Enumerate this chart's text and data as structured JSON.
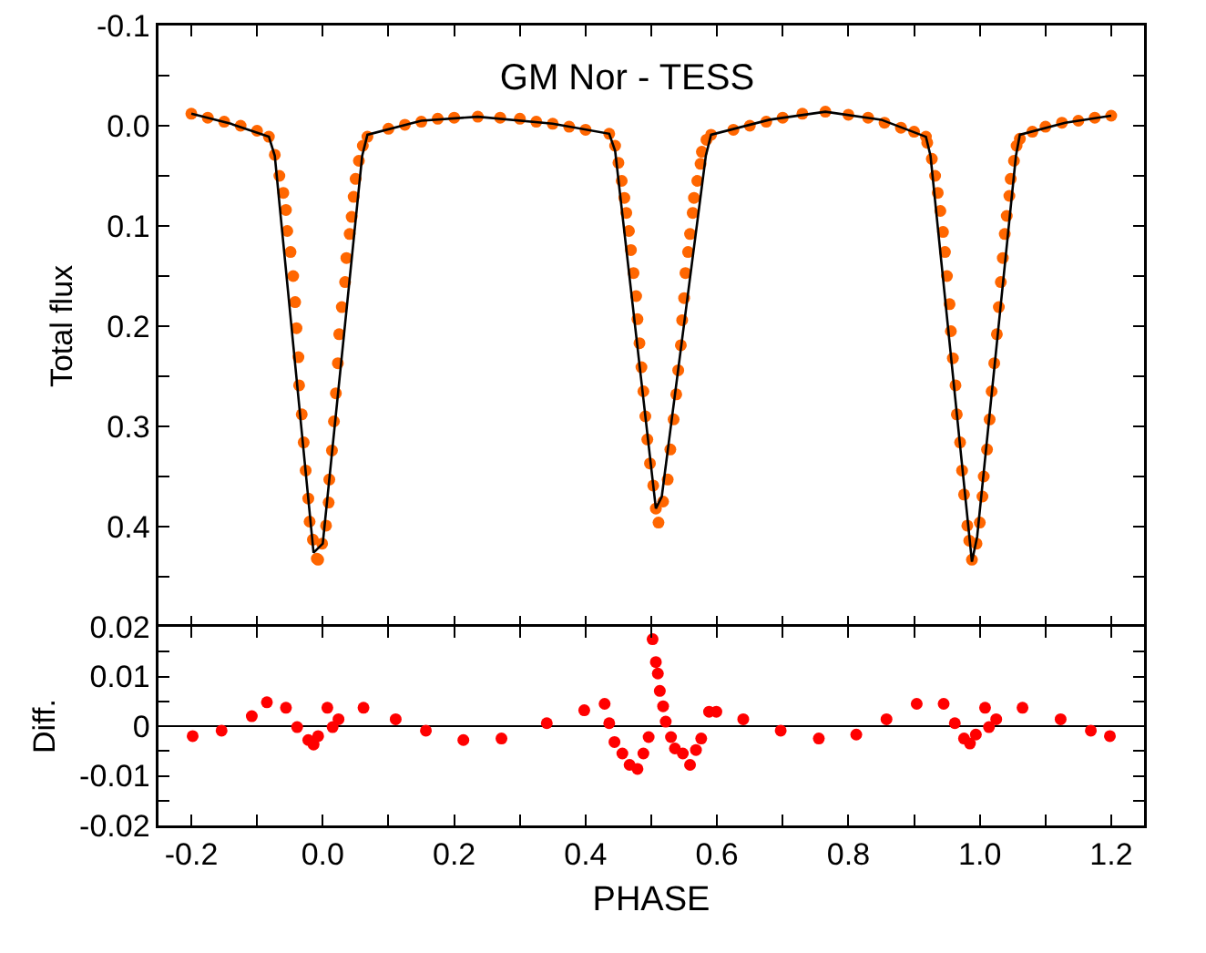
{
  "chart_data": [
    {
      "type": "scatter",
      "title": "GM Nor - TESS",
      "ylabel": "Total flux",
      "marker": "circle",
      "tick_labels": "y",
      "xlim": [
        -0.25,
        1.25
      ],
      "xticks": [
        -0.2,
        {
          "value": -0.1,
          "label": null
        },
        0.0,
        {
          "value": 0.1,
          "label": null
        },
        0.2,
        {
          "value": 0.3,
          "label": null
        },
        0.4,
        {
          "value": 0.5,
          "label": null
        },
        0.6,
        {
          "value": 0.7,
          "label": null
        },
        0.8,
        {
          "value": 0.9,
          "label": null
        },
        1.0,
        {
          "value": 1.1,
          "label": null
        },
        1.2
      ],
      "ylim": [
        0.5,
        -0.1
      ],
      "yticks": [
        -0.1,
        {
          "value": -0.05,
          "label": null
        },
        {
          "value": 0,
          "label": "0.0"
        },
        {
          "value": 0.05,
          "label": null
        },
        0.1,
        {
          "value": 0.15,
          "label": null
        },
        0.2,
        {
          "value": 0.25,
          "label": null
        },
        0.3,
        {
          "value": 0.35,
          "label": null
        },
        0.4,
        {
          "value": 0.45,
          "label": null
        }
      ],
      "series": [
        {
          "color": "#ff6600",
          "x": [
            -0.2,
            -0.175,
            -0.15,
            -0.125,
            -0.1,
            -0.082,
            -0.073,
            -0.066,
            -0.06,
            -0.056,
            -0.054,
            -0.049,
            -0.045,
            -0.042,
            -0.04,
            -0.037,
            -0.036,
            -0.032,
            -0.029,
            -0.026,
            -0.022,
            -0.02,
            -0.015,
            -0.009,
            -0.007,
            -0.001,
            0.005,
            0.009,
            0.01,
            0.014,
            0.017,
            0.02,
            0.023,
            0.025,
            0.029,
            0.034,
            0.036,
            0.041,
            0.044,
            0.047,
            0.05,
            0.055,
            0.061,
            0.068,
            0.1,
            0.125,
            0.15,
            0.175,
            0.2,
            0.236,
            0.27,
            0.3,
            0.325,
            0.35,
            0.375,
            0.4,
            0.436,
            0.445,
            0.45,
            0.455,
            0.459,
            0.462,
            0.466,
            0.469,
            0.473,
            0.477,
            0.479,
            0.482,
            0.485,
            0.488,
            0.491,
            0.494,
            0.498,
            0.503,
            0.507,
            0.511,
            0.518,
            0.525,
            0.529,
            0.534,
            0.538,
            0.541,
            0.545,
            0.547,
            0.55,
            0.552,
            0.556,
            0.559,
            0.563,
            0.565,
            0.57,
            0.575,
            0.577,
            0.584,
            0.591,
            0.625,
            0.65,
            0.675,
            0.7,
            0.73,
            0.765,
            0.8,
            0.83,
            0.855,
            0.88,
            0.9,
            0.918,
            0.92,
            0.927,
            0.932,
            0.936,
            0.94,
            0.944,
            0.947,
            0.95,
            0.954,
            0.956,
            0.959,
            0.963,
            0.965,
            0.97,
            0.973,
            0.976,
            0.981,
            0.984,
            0.988,
            0.995,
            1.0,
            1.004,
            1.006,
            1.011,
            1.015,
            1.018,
            1.022,
            1.026,
            1.029,
            1.032,
            1.035,
            1.038,
            1.041,
            1.045,
            1.047,
            1.052,
            1.056,
            1.061,
            1.08,
            1.1,
            1.125,
            1.15,
            1.175,
            1.2
          ],
          "values": [
            -0.012,
            -0.008,
            -0.004,
            0.0,
            0.005,
            0.011,
            0.029,
            0.05,
            0.067,
            0.084,
            0.105,
            0.126,
            0.15,
            0.176,
            0.202,
            0.231,
            0.259,
            0.288,
            0.316,
            0.344,
            0.372,
            0.395,
            0.413,
            0.432,
            0.433,
            0.417,
            0.399,
            0.376,
            0.353,
            0.324,
            0.295,
            0.267,
            0.237,
            0.208,
            0.181,
            0.156,
            0.132,
            0.108,
            0.091,
            0.071,
            0.053,
            0.035,
            0.02,
            0.011,
            0.003,
            -0.001,
            -0.004,
            -0.007,
            -0.008,
            -0.009,
            -0.008,
            -0.007,
            -0.004,
            -0.002,
            0.001,
            0.004,
            0.008,
            0.02,
            0.037,
            0.055,
            0.072,
            0.087,
            0.105,
            0.124,
            0.147,
            0.17,
            0.193,
            0.217,
            0.241,
            0.265,
            0.29,
            0.313,
            0.337,
            0.359,
            0.382,
            0.396,
            0.375,
            0.353,
            0.323,
            0.293,
            0.268,
            0.244,
            0.219,
            0.194,
            0.172,
            0.147,
            0.126,
            0.108,
            0.087,
            0.072,
            0.055,
            0.038,
            0.026,
            0.014,
            0.009,
            0.004,
            0.0,
            -0.004,
            -0.008,
            -0.012,
            -0.014,
            -0.011,
            -0.008,
            -0.003,
            0.002,
            0.006,
            0.011,
            0.017,
            0.033,
            0.05,
            0.067,
            0.085,
            0.106,
            0.126,
            0.15,
            0.178,
            0.205,
            0.232,
            0.259,
            0.288,
            0.316,
            0.344,
            0.368,
            0.399,
            0.414,
            0.433,
            0.417,
            0.396,
            0.37,
            0.35,
            0.323,
            0.293,
            0.265,
            0.237,
            0.208,
            0.181,
            0.156,
            0.132,
            0.108,
            0.09,
            0.07,
            0.053,
            0.035,
            0.02,
            0.013,
            0.006,
            0.001,
            -0.003,
            -0.005,
            -0.008,
            -0.01
          ]
        },
        {
          "type": "line",
          "marker": "none",
          "color": "#000000",
          "x": [
            -0.2,
            -0.14,
            -0.082,
            -0.073,
            -0.014,
            0.0,
            0.06,
            0.068,
            0.15,
            0.236,
            0.35,
            0.436,
            0.445,
            0.507,
            0.516,
            0.583,
            0.591,
            0.68,
            0.765,
            0.85,
            0.918,
            0.925,
            0.988,
            0.996,
            1.055,
            1.061,
            1.13,
            1.2
          ],
          "values": [
            -0.012,
            -0.002,
            0.011,
            0.03,
            0.426,
            0.417,
            0.03,
            0.009,
            -0.005,
            -0.009,
            -0.002,
            0.008,
            0.025,
            0.382,
            0.37,
            0.03,
            0.009,
            -0.006,
            -0.014,
            -0.006,
            0.011,
            0.03,
            0.435,
            0.41,
            0.03,
            0.009,
            -0.003,
            -0.01
          ]
        }
      ]
    },
    {
      "type": "scatter",
      "xlabel": "PHASE",
      "ylabel": "Diff.",
      "marker": "circle",
      "xlim": [
        -0.25,
        1.25
      ],
      "xticks": [
        -0.2,
        {
          "value": -0.1,
          "label": null
        },
        {
          "value": 0.0,
          "label": "0.0"
        },
        {
          "value": 0.1,
          "label": null
        },
        0.2,
        {
          "value": 0.3,
          "label": null
        },
        0.4,
        {
          "value": 0.5,
          "label": null
        },
        0.6,
        {
          "value": 0.7,
          "label": null
        },
        0.8,
        {
          "value": 0.9,
          "label": null
        },
        {
          "value": 1.0,
          "label": "1.0"
        },
        {
          "value": 1.1,
          "label": null
        },
        1.2
      ],
      "ylim": [
        -0.02,
        0.02
      ],
      "yticks": [
        -0.02,
        {
          "value": -0.015,
          "label": null
        },
        -0.01,
        {
          "value": -0.005,
          "label": null
        },
        0,
        {
          "value": 0.005,
          "label": null
        },
        0.01,
        {
          "value": 0.015,
          "label": null
        },
        0.02
      ],
      "ref_lines": [
        {
          "axis": "y",
          "value": 0,
          "color": "#000000"
        }
      ],
      "series": [
        {
          "color": "#ff0000",
          "x": [
            -0.198,
            -0.154,
            -0.108,
            -0.085,
            -0.056,
            -0.039,
            -0.022,
            -0.014,
            -0.007,
            0.007,
            0.015,
            0.024,
            0.062,
            0.111,
            0.157,
            0.214,
            0.272,
            0.341,
            0.398,
            0.429,
            0.436,
            0.444,
            0.456,
            0.467,
            0.479,
            0.488,
            0.496,
            0.502,
            0.507,
            0.51,
            0.513,
            0.518,
            0.522,
            0.53,
            0.536,
            0.548,
            0.559,
            0.568,
            0.576,
            0.588,
            0.599,
            0.64,
            0.697,
            0.755,
            0.812,
            0.858,
            0.904,
            0.945,
            0.962,
            0.976,
            0.985,
            0.994,
            1.008,
            1.014,
            1.025,
            1.065,
            1.123,
            1.169,
            1.198
          ],
          "values": [
            -0.002,
            -0.0009,
            0.002,
            0.0048,
            0.0037,
            -0.0002,
            -0.0028,
            -0.0037,
            -0.002,
            0.0037,
            -0.0002,
            0.0014,
            0.0037,
            0.0014,
            -0.0009,
            -0.0028,
            -0.0025,
            0.0006,
            0.0032,
            0.0045,
            0.0006,
            -0.0032,
            -0.0055,
            -0.0078,
            -0.0086,
            -0.0055,
            -0.0022,
            0.0175,
            0.0129,
            0.0106,
            0.0071,
            0.004,
            0.0009,
            -0.0022,
            -0.0045,
            -0.0055,
            -0.0078,
            -0.0048,
            -0.0025,
            0.0029,
            0.0029,
            0.0014,
            -0.0009,
            -0.0025,
            -0.0017,
            0.0014,
            0.0045,
            0.0045,
            0.0006,
            -0.0025,
            -0.0035,
            -0.0017,
            0.0037,
            -0.0002,
            0.0014,
            0.0037,
            0.0014,
            -0.0009,
            -0.002
          ]
        }
      ]
    }
  ]
}
